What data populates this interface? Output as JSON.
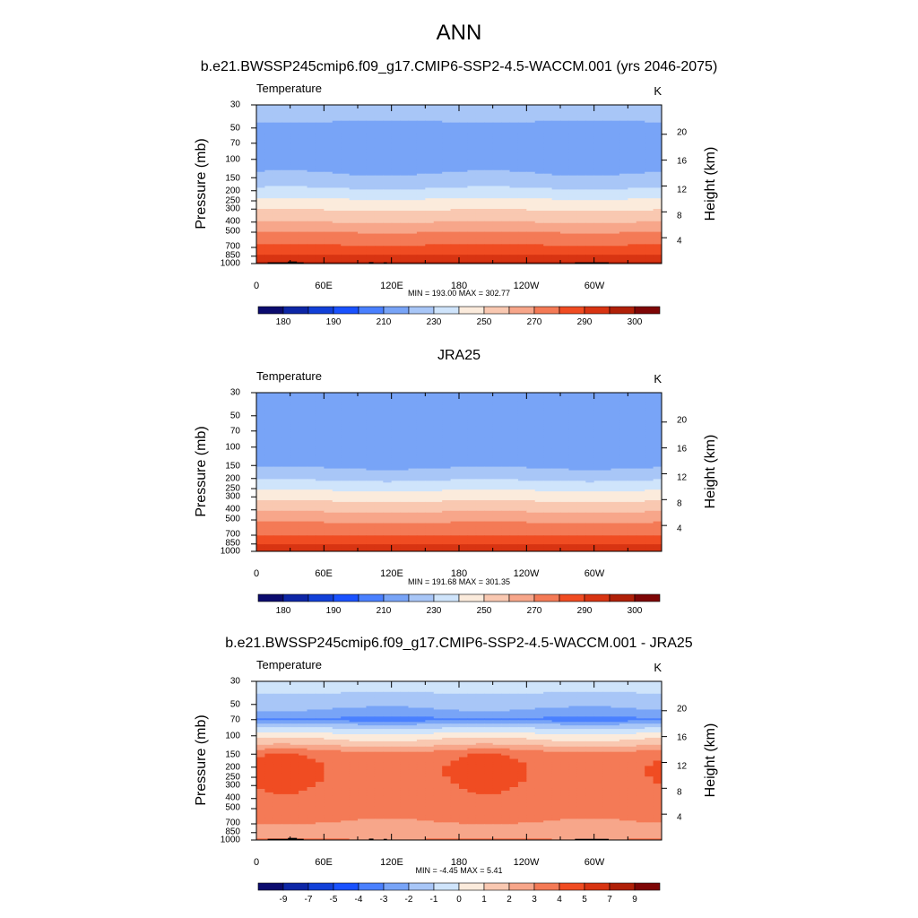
{
  "figure": {
    "title": "ANN"
  },
  "colors": {
    "temperature": [
      "#0b0b6e",
      "#0d26a6",
      "#1240d8",
      "#1a52ff",
      "#4a80ff",
      "#78a4f7",
      "#a8c6f7",
      "#cfe4fb",
      "#fbebdc",
      "#f9c8b1",
      "#f7a68a",
      "#f47a56",
      "#f04c22",
      "#d83412",
      "#b02008",
      "#7e0606"
    ],
    "difference": [
      "#0b0b6e",
      "#0d26a6",
      "#1240d8",
      "#1a52ff",
      "#4a80ff",
      "#78a4f7",
      "#a8c6f7",
      "#cfe4fb",
      "#fbebdc",
      "#f9c8b1",
      "#f7a68a",
      "#f47a56",
      "#f04c22",
      "#d83412",
      "#b02008",
      "#7e0606"
    ],
    "topography": "#000000"
  },
  "chart_data": [
    {
      "type": "heatmap",
      "title": "b.e21.BWSSP245cmip6.f09_g17.CMIP6-SSP2-4.5-WACCM.001 (yrs 2046-2075)",
      "left_string": "Temperature",
      "right_string": "K",
      "ylabel": "Pressure (mb)",
      "ylabel_right": "Height (km)",
      "x_ticklabels": [
        "0",
        "60E",
        "120E",
        "180",
        "120W",
        "60W"
      ],
      "x_tick_lons": [
        0,
        60,
        120,
        180,
        240,
        300
      ],
      "xlim": [
        0,
        360
      ],
      "y_ticklabels": [
        "30",
        "50",
        "70",
        "100",
        "150",
        "200",
        "250",
        "300",
        "400",
        "500",
        "700",
        "850",
        "1000"
      ],
      "y_ticks": [
        30,
        50,
        70,
        100,
        150,
        200,
        250,
        300,
        400,
        500,
        700,
        850,
        1000
      ],
      "ylim": [
        1000,
        30
      ],
      "y_scale": "log",
      "right_ticklabels": [
        "4",
        "8",
        "12",
        "16",
        "20"
      ],
      "right_ticks_km": [
        4,
        8,
        12,
        16,
        20
      ],
      "stats": "MIN = 193.00  MAX = 302.77",
      "colorbar_labels": [
        "180",
        "190",
        "210",
        "230",
        "250",
        "270",
        "290",
        "300"
      ],
      "colorbar_levels": [
        175,
        180,
        185,
        190,
        200,
        210,
        220,
        230,
        240,
        250,
        260,
        270,
        280,
        290,
        295,
        300
      ],
      "profile": {
        "pressure": [
          30,
          50,
          70,
          100,
          150,
          200,
          250,
          300,
          400,
          500,
          700,
          850,
          1000
        ],
        "value": [
          215,
          208,
          203,
          204,
          212,
          222,
          232,
          239,
          250,
          260,
          272,
          282,
          292
        ]
      },
      "topography": true
    },
    {
      "type": "heatmap",
      "title": "JRA25",
      "left_string": "Temperature",
      "right_string": "K",
      "ylabel": "Pressure (mb)",
      "ylabel_right": "Height (km)",
      "x_ticklabels": [
        "0",
        "60E",
        "120E",
        "180",
        "120W",
        "60W"
      ],
      "x_tick_lons": [
        0,
        60,
        120,
        180,
        240,
        300
      ],
      "xlim": [
        0,
        360
      ],
      "y_ticklabels": [
        "30",
        "50",
        "70",
        "100",
        "150",
        "200",
        "250",
        "300",
        "400",
        "500",
        "700",
        "850",
        "1000"
      ],
      "y_ticks": [
        30,
        50,
        70,
        100,
        150,
        200,
        250,
        300,
        400,
        500,
        700,
        850,
        1000
      ],
      "ylim": [
        1000,
        30
      ],
      "y_scale": "log",
      "right_ticklabels": [
        "4",
        "8",
        "12",
        "16",
        "20"
      ],
      "right_ticks_km": [
        4,
        8,
        12,
        16,
        20
      ],
      "stats": "MIN = 191.68  MAX = 301.35",
      "colorbar_labels": [
        "180",
        "190",
        "210",
        "230",
        "250",
        "270",
        "290",
        "300"
      ],
      "colorbar_levels": [
        175,
        180,
        185,
        190,
        200,
        210,
        220,
        230,
        240,
        250,
        260,
        270,
        280,
        290,
        295,
        300
      ],
      "profile": {
        "pressure": [
          30,
          50,
          70,
          100,
          150,
          200,
          250,
          300,
          400,
          500,
          700,
          850,
          1000
        ],
        "value": [
          210,
          206,
          202,
          202,
          208,
          218,
          228,
          236,
          248,
          258,
          270,
          280,
          290
        ]
      },
      "topography": false
    },
    {
      "type": "heatmap",
      "title": "b.e21.BWSSP245cmip6.f09_g17.CMIP6-SSP2-4.5-WACCM.001 - JRA25",
      "left_string": "Temperature",
      "right_string": "K",
      "ylabel": "Pressure (mb)",
      "ylabel_right": "Height (km)",
      "x_ticklabels": [
        "0",
        "60E",
        "120E",
        "180",
        "120W",
        "60W"
      ],
      "x_tick_lons": [
        0,
        60,
        120,
        180,
        240,
        300
      ],
      "xlim": [
        0,
        360
      ],
      "y_ticklabels": [
        "30",
        "50",
        "70",
        "100",
        "150",
        "200",
        "250",
        "300",
        "400",
        "500",
        "700",
        "850",
        "1000"
      ],
      "y_ticks": [
        30,
        50,
        70,
        100,
        150,
        200,
        250,
        300,
        400,
        500,
        700,
        850,
        1000
      ],
      "ylim": [
        1000,
        30
      ],
      "y_scale": "log",
      "right_ticklabels": [
        "4",
        "8",
        "12",
        "16",
        "20"
      ],
      "right_ticks_km": [
        4,
        8,
        12,
        16,
        20
      ],
      "stats": "MIN =  -4.45  MAX =   5.41",
      "colorbar_labels": [
        "-9",
        "-7",
        "-5",
        "-4",
        "-3",
        "-2",
        "-1",
        "0",
        "1",
        "2",
        "3",
        "4",
        "5",
        "7",
        "9"
      ],
      "colorbar_levels": [
        -10,
        -8,
        -6,
        -4.5,
        -3.5,
        -2.5,
        -1.5,
        -0.5,
        0.5,
        1.5,
        2.5,
        3.5,
        4.5,
        6,
        8,
        10
      ],
      "profile": {
        "pressure": [
          30,
          50,
          60,
          70,
          80,
          100,
          120,
          150,
          200,
          250,
          300,
          500,
          700,
          850,
          1000
        ],
        "value": [
          -0.8,
          -2.2,
          -2.8,
          -3.8,
          -2.0,
          0.0,
          1.2,
          3.2,
          3.4,
          3.4,
          3.3,
          3.1,
          2.4,
          1.8,
          2.6
        ]
      },
      "topography": true
    }
  ]
}
